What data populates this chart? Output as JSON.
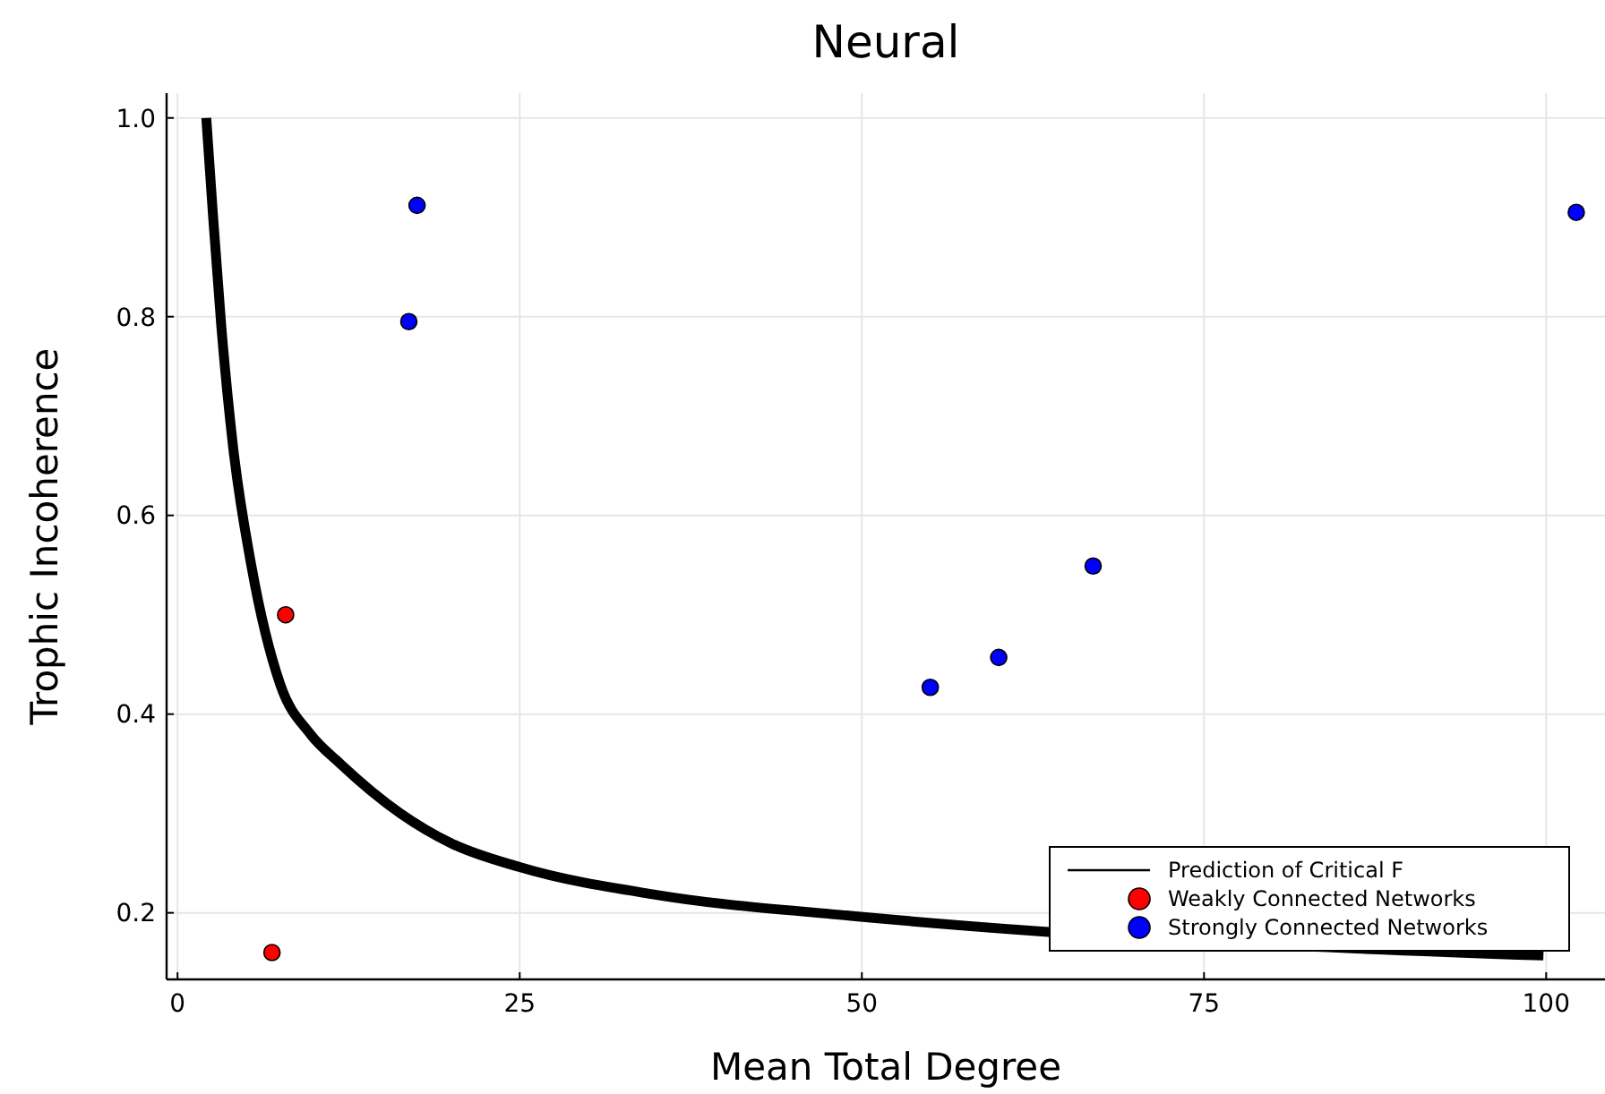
{
  "chart_data": {
    "type": "scatter",
    "title": "Neural",
    "xlabel": "Mean Total Degree",
    "ylabel": "Trophic Incoherence",
    "xlim": [
      -0.8,
      104.3
    ],
    "ylim": [
      0.133,
      1.025
    ],
    "xticks": [
      0,
      25,
      50,
      75,
      100
    ],
    "yticks": [
      {
        "value": 0.2,
        "label": "0.2"
      },
      {
        "value": 0.4,
        "label": "0.4"
      },
      {
        "value": 0.6,
        "label": "0.6"
      },
      {
        "value": 0.8,
        "label": "0.8"
      },
      {
        "value": 1.0,
        "label": "1.0"
      }
    ],
    "grid": true,
    "legend": "bottom right",
    "series": [
      {
        "name": "Prediction of Critical F",
        "type": "line",
        "color": "#000000",
        "line_style": "solid",
        "x": [
          2.1,
          2.6,
          3.2,
          4.05,
          5.4,
          7.5,
          9.7,
          11.9,
          16.3,
          20,
          25,
          35,
          49.2,
          63.4,
          99.8
        ],
        "values": [
          1.0,
          0.9,
          0.79,
          0.67,
          0.549,
          0.43,
          0.38,
          0.35,
          0.3,
          0.27,
          0.246,
          0.218,
          0.197,
          0.181,
          0.157
        ]
      },
      {
        "name": "Weakly Connected Networks",
        "color": "#ff0000",
        "marker": "circle",
        "x": [
          6.9,
          7.9
        ],
        "values": [
          0.16,
          0.5
        ]
      },
      {
        "name": "Strongly Connected Networks",
        "color": "#0000ff",
        "marker": "circle",
        "x": [
          16.9,
          17.5,
          55,
          60,
          66.9,
          102.2
        ],
        "values": [
          0.795,
          0.912,
          0.427,
          0.457,
          0.549,
          0.905
        ]
      }
    ]
  }
}
